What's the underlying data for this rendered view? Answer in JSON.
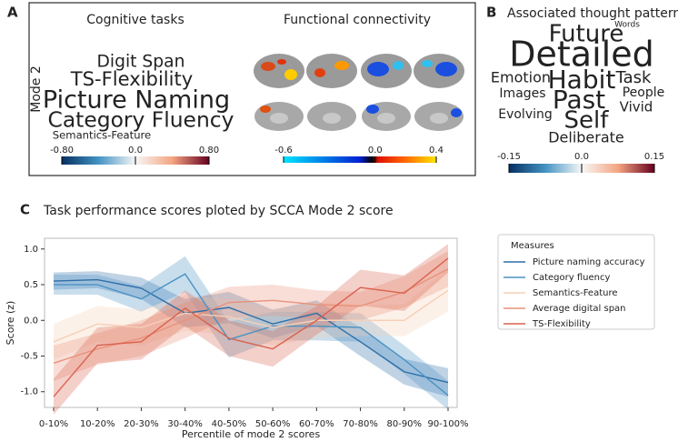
{
  "panel_labels": {
    "a": "A",
    "b": "B",
    "c": "C"
  },
  "panel_a": {
    "cognitive_title": "Cognitive tasks",
    "fc_title": "Functional connectivity",
    "mode_label": "Mode 2",
    "vmax": 0.8,
    "words": [
      {
        "text": "Digit Span",
        "loading": 0.45
      },
      {
        "text": "TS-Flexibility",
        "loading": 0.55
      },
      {
        "text": "Picture Naming",
        "loading": -0.8
      },
      {
        "text": "Category Fluency",
        "loading": -0.65
      },
      {
        "text": "Semantics-Feature",
        "loading": 0.15
      }
    ],
    "cog_colorbar_ticks": [
      {
        "value": -0.8,
        "label": "-0.80"
      },
      {
        "value": 0,
        "label": "0.0"
      },
      {
        "value": 0.8,
        "label": "0.80"
      }
    ],
    "cog_colorbar_lim": [
      -0.8,
      0.8
    ],
    "fc_colorbar_ticks": [
      -0.6,
      {
        "value": 0,
        "label": "0.0"
      },
      0.4
    ],
    "fc_colorbar_lim": [
      -0.6,
      0.4
    ]
  },
  "panel_b": {
    "title": "Associated thought pattern",
    "vmax": 0.15,
    "words": [
      {
        "text": "Future",
        "loading": -0.09
      },
      {
        "text": "Words",
        "loading": 0.005
      },
      {
        "text": "Detailed",
        "loading": -0.15
      },
      {
        "text": "Habit",
        "loading": -0.1
      },
      {
        "text": "Task",
        "loading": 0.05
      },
      {
        "text": "Emotion",
        "loading": 0.04
      },
      {
        "text": "Images",
        "loading": -0.03
      },
      {
        "text": "Past",
        "loading": -0.1
      },
      {
        "text": "People",
        "loading": -0.03
      },
      {
        "text": "Vivid",
        "loading": -0.035
      },
      {
        "text": "Evolving",
        "loading": 0.03
      },
      {
        "text": "Self",
        "loading": -0.09
      },
      {
        "text": "Deliberate",
        "loading": -0.04
      }
    ],
    "colorbar_ticks": [
      -0.15,
      {
        "value": 0,
        "label": "0.0"
      },
      0.15
    ],
    "colorbar_lim": [
      -0.15,
      0.15
    ]
  },
  "chart_data": {
    "type": "line",
    "title": "Task performance scores ploted by SCCA Mode 2 score",
    "x_label": "Percentile of mode 2 scores",
    "y_label": "Score (z)",
    "categories": [
      "0-10%",
      "10-20%",
      "20-30%",
      "30-40%",
      "40-50%",
      "50-60%",
      "60-70%",
      "70-80%",
      "80-90%",
      "90-100%"
    ],
    "ylim": [
      -1.22,
      1.15
    ],
    "yticks": [
      {
        "value": -1,
        "label": "-1.0"
      },
      {
        "value": -0.5,
        "label": "-0.5"
      },
      {
        "value": 0,
        "label": "0.0"
      },
      {
        "value": 0.5,
        "label": "0.5"
      },
      {
        "value": 1,
        "label": "1.0"
      }
    ],
    "legend_title": "Measures",
    "series": [
      {
        "name": "Picture naming accuracy",
        "color": "#2f6ea8",
        "values": [
          0.55,
          0.57,
          0.45,
          0.1,
          0.18,
          -0.05,
          0.1,
          -0.3,
          -0.72,
          -0.87
        ],
        "errors": [
          0.12,
          0.12,
          0.15,
          0.2,
          0.22,
          0.2,
          0.18,
          0.2,
          0.18,
          0.2
        ]
      },
      {
        "name": "Category fluency",
        "color": "#4b92c3",
        "values": [
          0.5,
          0.5,
          0.3,
          0.65,
          -0.27,
          -0.08,
          -0.08,
          -0.1,
          -0.55,
          -1.05
        ],
        "errors": [
          0.14,
          0.14,
          0.18,
          0.25,
          0.25,
          0.2,
          0.2,
          0.2,
          0.2,
          0.2
        ]
      },
      {
        "name": "Semantics-Feature",
        "color": "#f6cfb6",
        "values": [
          -0.3,
          -0.05,
          -0.1,
          0.1,
          0.05,
          -0.1,
          0.0,
          0.0,
          0.0,
          0.42
        ],
        "errors": [
          0.25,
          0.25,
          0.25,
          0.25,
          0.25,
          0.25,
          0.25,
          0.22,
          0.22,
          0.3
        ]
      },
      {
        "name": "Average digital span",
        "color": "#e8927a",
        "values": [
          -0.6,
          -0.4,
          -0.25,
          0.0,
          0.25,
          0.28,
          0.22,
          0.2,
          0.4,
          0.72
        ],
        "errors": [
          0.25,
          0.22,
          0.25,
          0.25,
          0.22,
          0.22,
          0.2,
          0.2,
          0.22,
          0.25
        ]
      },
      {
        "name": "TS-Flexibility",
        "color": "#d9634e",
        "values": [
          -1.07,
          -0.35,
          -0.3,
          0.17,
          -0.25,
          -0.4,
          0.0,
          0.46,
          0.38,
          0.87
        ],
        "errors": [
          0.25,
          0.25,
          0.25,
          0.25,
          0.25,
          0.25,
          0.2,
          0.25,
          0.25,
          0.2
        ]
      }
    ]
  }
}
